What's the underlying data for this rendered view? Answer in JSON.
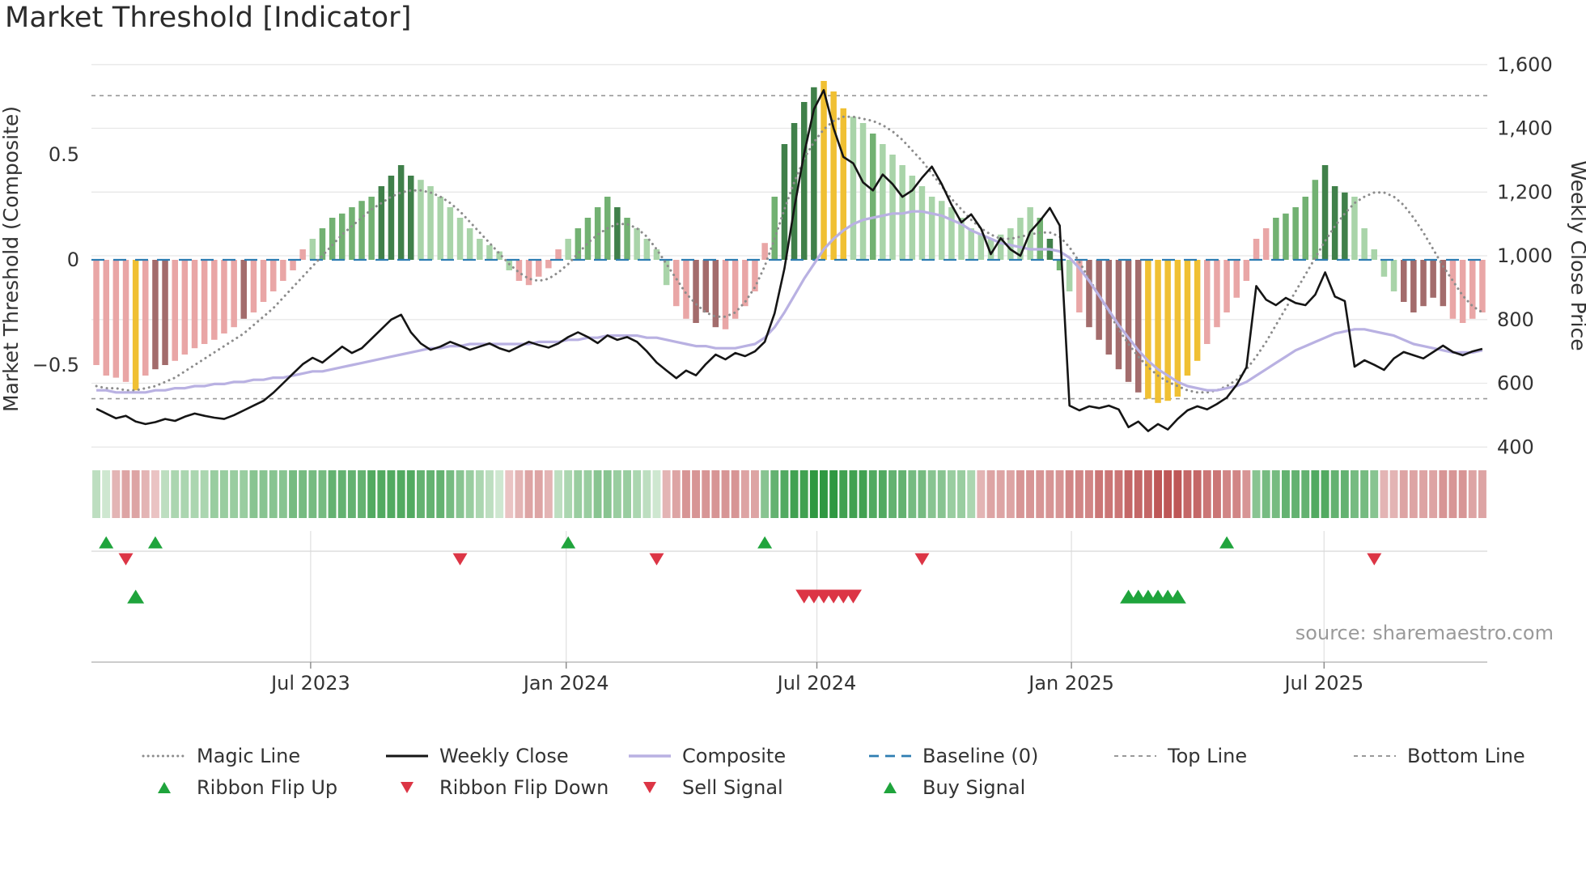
{
  "title": "Market Threshold [Indicator]",
  "source_note": "source: sharemaestro.com",
  "colors": {
    "bar_light_green": "#a9d4a9",
    "bar_medium_green": "#72b172",
    "bar_dark_green": "#40804a",
    "bar_pink": "#e9a6a6",
    "bar_brown": "#a36c6c",
    "bar_gold": "#f0c033",
    "weekly_close": "#151515",
    "magic_line": "#8c8c8c",
    "composite_line": "#b9b1e2",
    "baseline": "#2e7db2",
    "top_bottom_line": "#999999",
    "buy_green": "#1fa43c",
    "sell_red": "#dc3545",
    "ribbon_green_max": "#2f9841",
    "ribbon_red_max": "#b84848",
    "grid": "#e8e8e8"
  },
  "legend": {
    "items": [
      {
        "label": "Magic Line",
        "glyph": "magic"
      },
      {
        "label": "Weekly Close",
        "glyph": "weekly"
      },
      {
        "label": "Composite",
        "glyph": "composite"
      },
      {
        "label": "Baseline (0)",
        "glyph": "baseline"
      },
      {
        "label": "Top Line",
        "glyph": "dashed"
      },
      {
        "label": "Bottom Line",
        "glyph": "dashed"
      },
      {
        "label": "Ribbon Flip Up",
        "glyph": "tri-up"
      },
      {
        "label": "Ribbon Flip Down",
        "glyph": "tri-down"
      },
      {
        "label": "Sell Signal",
        "glyph": "tri-down"
      },
      {
        "label": "Buy Signal",
        "glyph": "tri-up"
      }
    ]
  },
  "chart_data": {
    "type": "bar+line",
    "title": "Market Threshold [Indicator]",
    "left_axis_label": "Market Threshold (Composite)",
    "right_axis_label": "Weekly Close Price",
    "weeks": 142,
    "x_ticks": [
      {
        "label": "Jul 2023",
        "week": 21.8
      },
      {
        "label": "Jan 2024",
        "week": 47.8
      },
      {
        "label": "Jul 2024",
        "week": 73.3
      },
      {
        "label": "Jan 2025",
        "week": 99.2
      },
      {
        "label": "Jul 2025",
        "week": 124.9
      }
    ],
    "left_ticks": [
      {
        "label": "0.5",
        "value": 0.5
      },
      {
        "label": "0",
        "value": 0
      },
      {
        "label": "−0.5",
        "value": -0.5
      }
    ],
    "right_ticks": [
      {
        "label": "1,600",
        "value": 1600
      },
      {
        "label": "1,400",
        "value": 1400
      },
      {
        "label": "1,200",
        "value": 1200
      },
      {
        "label": "1,000",
        "value": 1000
      },
      {
        "label": "800",
        "value": 800
      },
      {
        "label": "600",
        "value": 600
      },
      {
        "label": "400",
        "value": 400
      }
    ],
    "left_ylim": [
      -0.95,
      0.96
    ],
    "right_ylim": [
      370,
      1630
    ],
    "top_line": 0.78,
    "bottom_line": -0.66,
    "baseline": 0,
    "composite_bars": [
      -0.5,
      -0.55,
      -0.56,
      -0.58,
      -0.62,
      -0.55,
      -0.52,
      -0.5,
      -0.48,
      -0.45,
      -0.42,
      -0.4,
      -0.38,
      -0.35,
      -0.32,
      -0.28,
      -0.25,
      -0.2,
      -0.15,
      -0.1,
      -0.05,
      0.05,
      0.1,
      0.15,
      0.2,
      0.22,
      0.25,
      0.28,
      0.3,
      0.35,
      0.4,
      0.45,
      0.4,
      0.38,
      0.35,
      0.3,
      0.25,
      0.2,
      0.15,
      0.1,
      0.07,
      0.04,
      -0.05,
      -0.1,
      -0.12,
      -0.08,
      -0.04,
      0.05,
      0.1,
      0.15,
      0.2,
      0.25,
      0.3,
      0.25,
      0.2,
      0.15,
      0.1,
      0.05,
      -0.12,
      -0.22,
      -0.28,
      -0.3,
      -0.25,
      -0.32,
      -0.33,
      -0.28,
      -0.22,
      -0.15,
      0.08,
      0.3,
      0.55,
      0.65,
      0.75,
      0.82,
      0.85,
      0.8,
      0.72,
      0.68,
      0.65,
      0.6,
      0.55,
      0.5,
      0.45,
      0.4,
      0.35,
      0.3,
      0.28,
      0.25,
      0.2,
      0.15,
      0.12,
      0.1,
      0.12,
      0.15,
      0.2,
      0.25,
      0.2,
      0.1,
      -0.05,
      -0.15,
      -0.25,
      -0.32,
      -0.38,
      -0.45,
      -0.52,
      -0.58,
      -0.63,
      -0.66,
      -0.68,
      -0.67,
      -0.65,
      -0.55,
      -0.48,
      -0.4,
      -0.32,
      -0.25,
      -0.18,
      -0.1,
      0.1,
      0.15,
      0.2,
      0.22,
      0.25,
      0.3,
      0.38,
      0.45,
      0.35,
      0.32,
      0.3,
      0.15,
      0.05,
      -0.08,
      -0.15,
      -0.2,
      -0.25,
      -0.22,
      -0.18,
      -0.22,
      -0.28,
      -0.3,
      -0.28,
      -0.25
    ],
    "bar_styles": "ppppypbbpppppppbppppppgGGGGGGDDDDggggggggggpppppgGGGGDGggggppbbbpppppGDDDDyyyggGggggggggggggggggGDGgpbbbbbbyyyyyypppppppGGGGGDDDgggggbbbbbpppppp",
    "weekly_close": [
      520,
      505,
      490,
      498,
      480,
      472,
      478,
      488,
      482,
      495,
      505,
      498,
      492,
      488,
      500,
      515,
      530,
      545,
      570,
      600,
      630,
      660,
      680,
      665,
      690,
      715,
      695,
      710,
      740,
      770,
      800,
      815,
      760,
      725,
      705,
      715,
      730,
      718,
      705,
      715,
      725,
      710,
      700,
      715,
      730,
      720,
      712,
      725,
      745,
      760,
      745,
      726,
      750,
      736,
      745,
      730,
      700,
      665,
      640,
      616,
      640,
      625,
      660,
      690,
      675,
      695,
      685,
      700,
      730,
      820,
      960,
      1150,
      1320,
      1460,
      1520,
      1400,
      1310,
      1290,
      1230,
      1205,
      1255,
      1225,
      1185,
      1205,
      1245,
      1280,
      1225,
      1160,
      1105,
      1130,
      1085,
      1005,
      1055,
      1020,
      1000,
      1075,
      1110,
      1150,
      1095,
      530,
      515,
      528,
      522,
      530,
      518,
      462,
      480,
      450,
      472,
      455,
      488,
      515,
      528,
      518,
      535,
      555,
      595,
      650,
      905,
      862,
      845,
      868,
      852,
      845,
      878,
      948,
      872,
      858,
      652,
      672,
      658,
      642,
      678,
      698,
      688,
      678,
      698,
      718,
      698,
      688,
      700,
      708
    ],
    "magic_line": [
      -0.6,
      -0.61,
      -0.61,
      -0.62,
      -0.62,
      -0.61,
      -0.6,
      -0.58,
      -0.56,
      -0.53,
      -0.5,
      -0.47,
      -0.44,
      -0.41,
      -0.38,
      -0.35,
      -0.31,
      -0.27,
      -0.23,
      -0.18,
      -0.13,
      -0.08,
      -0.03,
      0.02,
      0.07,
      0.12,
      0.16,
      0.2,
      0.24,
      0.27,
      0.3,
      0.32,
      0.33,
      0.33,
      0.32,
      0.3,
      0.27,
      0.23,
      0.18,
      0.13,
      0.08,
      0.03,
      -0.02,
      -0.06,
      -0.09,
      -0.1,
      -0.09,
      -0.06,
      -0.02,
      0.03,
      0.08,
      0.12,
      0.15,
      0.17,
      0.17,
      0.15,
      0.11,
      0.05,
      -0.02,
      -0.09,
      -0.16,
      -0.21,
      -0.25,
      -0.27,
      -0.27,
      -0.25,
      -0.2,
      -0.13,
      -0.03,
      0.1,
      0.24,
      0.37,
      0.48,
      0.56,
      0.62,
      0.66,
      0.68,
      0.68,
      0.67,
      0.66,
      0.64,
      0.61,
      0.57,
      0.52,
      0.47,
      0.41,
      0.35,
      0.29,
      0.24,
      0.19,
      0.15,
      0.12,
      0.1,
      0.1,
      0.11,
      0.12,
      0.13,
      0.13,
      0.11,
      0.06,
      -0.01,
      -0.09,
      -0.17,
      -0.25,
      -0.33,
      -0.4,
      -0.46,
      -0.51,
      -0.55,
      -0.58,
      -0.6,
      -0.62,
      -0.63,
      -0.63,
      -0.62,
      -0.6,
      -0.57,
      -0.52,
      -0.46,
      -0.39,
      -0.31,
      -0.23,
      -0.15,
      -0.07,
      0.01,
      0.09,
      0.16,
      0.22,
      0.27,
      0.3,
      0.32,
      0.32,
      0.3,
      0.26,
      0.2,
      0.13,
      0.05,
      -0.03,
      -0.1,
      -0.17,
      -0.22,
      -0.25
    ],
    "composite_line": [
      -0.62,
      -0.62,
      -0.63,
      -0.63,
      -0.63,
      -0.63,
      -0.62,
      -0.62,
      -0.61,
      -0.61,
      -0.6,
      -0.6,
      -0.59,
      -0.59,
      -0.58,
      -0.58,
      -0.57,
      -0.57,
      -0.56,
      -0.56,
      -0.55,
      -0.54,
      -0.53,
      -0.53,
      -0.52,
      -0.51,
      -0.5,
      -0.49,
      -0.48,
      -0.47,
      -0.46,
      -0.45,
      -0.44,
      -0.43,
      -0.42,
      -0.42,
      -0.41,
      -0.41,
      -0.4,
      -0.4,
      -0.4,
      -0.4,
      -0.4,
      -0.4,
      -0.4,
      -0.39,
      -0.39,
      -0.39,
      -0.38,
      -0.38,
      -0.37,
      -0.37,
      -0.36,
      -0.36,
      -0.36,
      -0.36,
      -0.37,
      -0.37,
      -0.38,
      -0.39,
      -0.4,
      -0.41,
      -0.41,
      -0.42,
      -0.42,
      -0.42,
      -0.41,
      -0.4,
      -0.37,
      -0.32,
      -0.25,
      -0.17,
      -0.09,
      -0.02,
      0.05,
      0.1,
      0.14,
      0.17,
      0.19,
      0.2,
      0.21,
      0.22,
      0.22,
      0.23,
      0.23,
      0.22,
      0.21,
      0.19,
      0.17,
      0.14,
      0.12,
      0.1,
      0.08,
      0.07,
      0.06,
      0.05,
      0.05,
      0.05,
      0.04,
      0.01,
      -0.04,
      -0.1,
      -0.17,
      -0.24,
      -0.31,
      -0.37,
      -0.43,
      -0.48,
      -0.52,
      -0.55,
      -0.58,
      -0.6,
      -0.61,
      -0.62,
      -0.62,
      -0.61,
      -0.6,
      -0.58,
      -0.55,
      -0.52,
      -0.49,
      -0.46,
      -0.43,
      -0.41,
      -0.39,
      -0.37,
      -0.35,
      -0.34,
      -0.33,
      -0.33,
      -0.34,
      -0.35,
      -0.36,
      -0.38,
      -0.4,
      -0.41,
      -0.42,
      -0.43,
      -0.44,
      -0.44,
      -0.44,
      -0.43
    ],
    "ribbon": [
      0.2,
      0.1,
      -0.3,
      -0.4,
      -0.4,
      -0.3,
      -0.2,
      0.2,
      0.3,
      0.3,
      0.3,
      0.3,
      0.4,
      0.4,
      0.4,
      0.4,
      0.5,
      0.5,
      0.5,
      0.5,
      0.6,
      0.6,
      0.6,
      0.6,
      0.7,
      0.7,
      0.7,
      0.7,
      0.8,
      0.8,
      0.8,
      0.8,
      0.8,
      0.7,
      0.7,
      0.7,
      0.6,
      0.5,
      0.4,
      0.3,
      0.2,
      0.1,
      -0.2,
      -0.3,
      -0.4,
      -0.4,
      -0.3,
      0.2,
      0.3,
      0.4,
      0.4,
      0.5,
      0.5,
      0.4,
      0.4,
      0.3,
      0.2,
      0.1,
      -0.3,
      -0.4,
      -0.5,
      -0.5,
      -0.5,
      -0.5,
      -0.5,
      -0.5,
      -0.4,
      -0.4,
      0.5,
      0.7,
      0.8,
      0.9,
      0.9,
      1.0,
      1.0,
      1.0,
      0.9,
      0.9,
      0.9,
      0.8,
      0.8,
      0.7,
      0.7,
      0.6,
      0.6,
      0.5,
      0.5,
      0.4,
      0.4,
      0.3,
      -0.3,
      -0.4,
      -0.4,
      -0.4,
      -0.5,
      -0.5,
      -0.5,
      -0.5,
      -0.5,
      -0.6,
      -0.6,
      -0.6,
      -0.7,
      -0.7,
      -0.7,
      -0.8,
      -0.8,
      -0.8,
      -0.9,
      -0.9,
      -0.9,
      -0.8,
      -0.8,
      -0.7,
      -0.7,
      -0.6,
      -0.6,
      -0.5,
      0.5,
      0.6,
      0.6,
      0.7,
      0.7,
      0.7,
      0.8,
      0.8,
      0.7,
      0.7,
      0.6,
      0.6,
      0.5,
      -0.3,
      -0.3,
      -0.4,
      -0.4,
      -0.4,
      -0.4,
      -0.5,
      -0.5,
      -0.5,
      -0.4,
      -0.4
    ],
    "signals": {
      "ribbon_flip_up_weeks": [
        1,
        6,
        48,
        68,
        115
      ],
      "ribbon_flip_down_weeks": [
        3,
        37,
        57,
        84,
        130
      ],
      "sell_signal_weeks": [
        72,
        73,
        74,
        75,
        76,
        77
      ],
      "buy_signal_weeks": [
        4,
        105,
        106,
        107,
        108,
        109,
        110
      ]
    }
  }
}
